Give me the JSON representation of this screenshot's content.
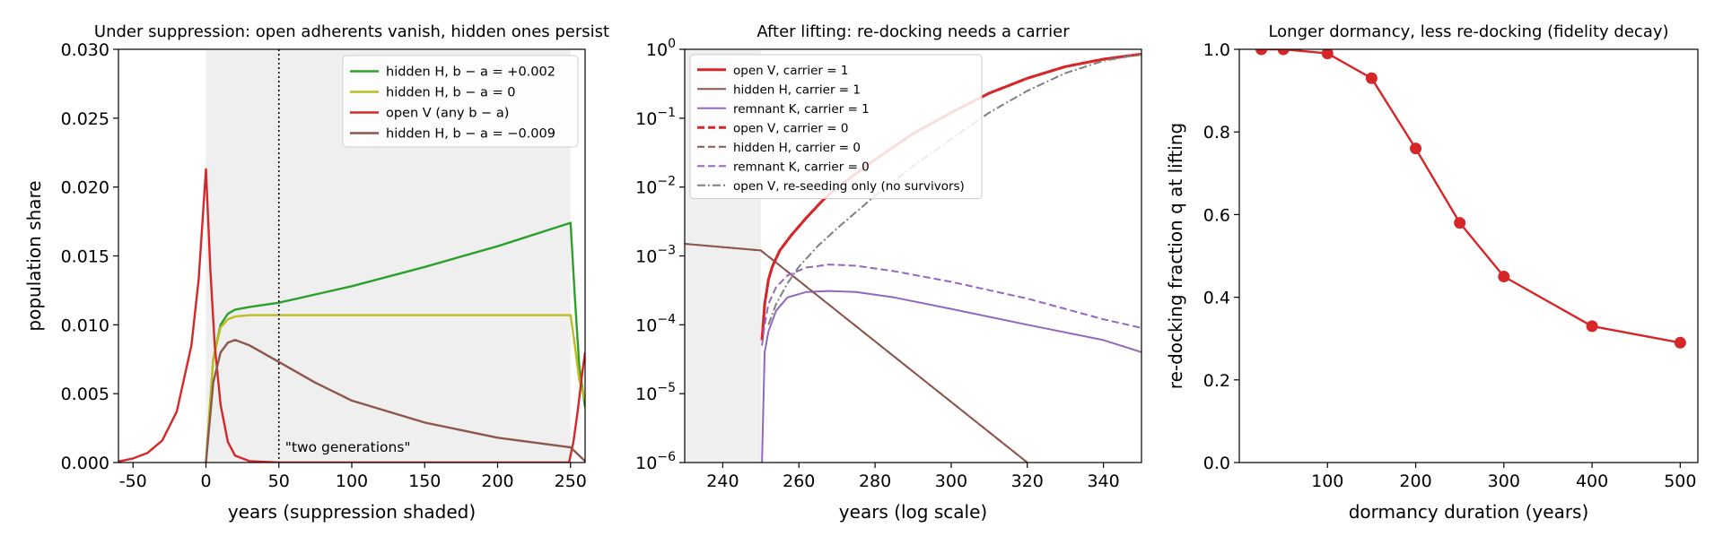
{
  "chart_data": [
    {
      "type": "line",
      "title": "Under suppression: open adherents vanish, hidden ones persist",
      "xlabel": "years (suppression shaded)",
      "ylabel": "population share",
      "xlim": [
        -60,
        260
      ],
      "ylim": [
        0,
        0.03
      ],
      "xticks": [
        -50,
        0,
        50,
        100,
        150,
        200,
        250
      ],
      "yticks": [
        0.0,
        0.005,
        0.01,
        0.015,
        0.02,
        0.025,
        0.03
      ],
      "ytick_labels": [
        "0.000",
        "0.005",
        "0.010",
        "0.015",
        "0.020",
        "0.025",
        "0.030"
      ],
      "shaded_region": [
        0,
        250
      ],
      "vline": 50,
      "annotation": "\"two generations\"",
      "legend_position": "upper right",
      "series": [
        {
          "name": "hidden H, b − a = +0.002",
          "color": "#2ca02c",
          "style": "solid",
          "x": [
            0,
            5,
            10,
            15,
            20,
            30,
            50,
            100,
            150,
            200,
            250,
            253,
            256,
            260
          ],
          "y": [
            0,
            0.0075,
            0.01,
            0.0108,
            0.0111,
            0.0113,
            0.0116,
            0.0128,
            0.0142,
            0.0157,
            0.0174,
            0.012,
            0.007,
            0.004
          ]
        },
        {
          "name": "hidden H, b − a = 0",
          "color": "#bcbd22",
          "style": "solid",
          "x": [
            0,
            5,
            10,
            15,
            20,
            30,
            50,
            100,
            150,
            200,
            250,
            253,
            256,
            260
          ],
          "y": [
            0,
            0.0075,
            0.0098,
            0.0104,
            0.0106,
            0.0107,
            0.0107,
            0.0107,
            0.0107,
            0.0107,
            0.0107,
            0.0085,
            0.006,
            0.0045
          ]
        },
        {
          "name": "open V (any b − a)",
          "color": "#d62728",
          "style": "solid",
          "x": [
            -60,
            -50,
            -40,
            -30,
            -20,
            -10,
            -5,
            0,
            3,
            6,
            10,
            15,
            20,
            30,
            50,
            100,
            200,
            249,
            252,
            255,
            258,
            260
          ],
          "y": [
            7e-05,
            0.0003,
            0.0007,
            0.0016,
            0.0037,
            0.0085,
            0.0133,
            0.0213,
            0.014,
            0.0085,
            0.0042,
            0.0015,
            0.0005,
            0.0001,
            0,
            0,
            0,
            0,
            0.0015,
            0.0038,
            0.0065,
            0.008
          ]
        },
        {
          "name": "hidden H, b − a = −0.009",
          "color": "#8c564b",
          "style": "solid",
          "x": [
            0,
            5,
            10,
            15,
            20,
            30,
            40,
            50,
            75,
            100,
            150,
            200,
            250,
            254,
            260
          ],
          "y": [
            0,
            0.0058,
            0.008,
            0.0087,
            0.0089,
            0.0085,
            0.0079,
            0.0073,
            0.0058,
            0.0045,
            0.0029,
            0.0018,
            0.0011,
            0.0007,
            0.0001
          ]
        }
      ]
    },
    {
      "type": "line",
      "title": "After lifting: re-docking needs a carrier",
      "xlabel": "years (log scale)",
      "ylabel": "",
      "yscale": "log",
      "xlim": [
        230,
        350
      ],
      "ylim": [
        1e-06,
        1
      ],
      "xticks": [
        240,
        260,
        280,
        300,
        320,
        340
      ],
      "yticks": [
        0,
        -1,
        -2,
        -3,
        -4,
        -5,
        -6
      ],
      "shaded_region": [
        230,
        250
      ],
      "legend_position": "upper left",
      "series": [
        {
          "name": "open V, carrier = 1",
          "color": "#d62728",
          "style": "solid",
          "width": 3,
          "x": [
            250.3,
            251,
            252,
            253,
            255,
            258,
            262,
            266,
            270,
            280,
            290,
            300,
            310,
            320,
            330,
            340,
            350
          ],
          "y": [
            6e-05,
            0.0002,
            0.00045,
            0.0007,
            0.0012,
            0.002,
            0.0036,
            0.0062,
            0.0098,
            0.025,
            0.06,
            0.12,
            0.23,
            0.38,
            0.56,
            0.72,
            0.85
          ]
        },
        {
          "name": "hidden H, carrier = 1",
          "color": "#8c564b",
          "style": "solid",
          "width": 2,
          "x": [
            230,
            250,
            320
          ],
          "y": [
            0.0015,
            0.0012,
            1e-06
          ]
        },
        {
          "name": "remnant K, carrier = 1",
          "color": "#9467bd",
          "style": "solid",
          "width": 2,
          "x": [
            250.3,
            251,
            252,
            254,
            257,
            262,
            268,
            275,
            285,
            300,
            320,
            340,
            350
          ],
          "y": [
            1e-06,
            4e-05,
            8e-05,
            0.00016,
            0.00025,
            0.0003,
            0.00031,
            0.0003,
            0.00025,
            0.00017,
            0.0001,
            6e-05,
            4e-05
          ]
        },
        {
          "name": "open V, carrier = 0",
          "color": "#d62728",
          "style": "dashed",
          "width": 3,
          "x": [
            250.3,
            251,
            252,
            253,
            255,
            258,
            262,
            266,
            270,
            280,
            290,
            300,
            310,
            320,
            330,
            340,
            350
          ],
          "y": [
            6e-05,
            0.0002,
            0.00045,
            0.0007,
            0.0012,
            0.002,
            0.0036,
            0.0062,
            0.0098,
            0.025,
            0.06,
            0.12,
            0.23,
            0.38,
            0.56,
            0.72,
            0.85
          ]
        },
        {
          "name": "hidden H, carrier = 0",
          "color": "#8c564b",
          "style": "dashed",
          "width": 2,
          "x": [
            230,
            250,
            320
          ],
          "y": [
            0.0015,
            0.0012,
            1e-06
          ]
        },
        {
          "name": "remnant K, carrier = 0",
          "color": "#9467bd",
          "style": "dashed",
          "width": 2,
          "x": [
            250.3,
            251,
            252,
            254,
            257,
            262,
            268,
            275,
            285,
            300,
            320,
            340,
            350
          ],
          "y": [
            5e-05,
            0.0001,
            0.0002,
            0.00035,
            0.00052,
            0.00068,
            0.00075,
            0.00072,
            0.0006,
            0.00042,
            0.00024,
            0.00012,
            9e-05
          ]
        },
        {
          "name": "open V, re-seeding only (no survivors)",
          "color": "#7f7f7f",
          "style": "dashdot",
          "width": 2,
          "x": [
            252,
            254,
            257,
            260,
            265,
            270,
            280,
            290,
            300,
            310,
            320,
            330,
            340,
            350
          ],
          "y": [
            0.0001,
            0.0002,
            0.0004,
            0.0007,
            0.0014,
            0.0025,
            0.0075,
            0.02,
            0.05,
            0.12,
            0.25,
            0.45,
            0.68,
            0.85
          ]
        }
      ]
    },
    {
      "type": "line",
      "title": "Longer dormancy, less re-docking (fidelity decay)",
      "xlabel": "dormancy duration (years)",
      "ylabel": "re-docking fraction q at lifting",
      "xlim": [
        0,
        520
      ],
      "ylim": [
        0,
        1
      ],
      "xticks": [
        100,
        200,
        300,
        400,
        500
      ],
      "yticks": [
        0.0,
        0.2,
        0.4,
        0.6,
        0.8,
        1.0
      ],
      "series": [
        {
          "name": "",
          "color": "#d62728",
          "style": "solid",
          "marker": "o",
          "x": [
            25,
            50,
            100,
            150,
            200,
            250,
            300,
            400,
            500
          ],
          "y": [
            1.0,
            1.0,
            0.99,
            0.93,
            0.76,
            0.58,
            0.45,
            0.33,
            0.29
          ]
        }
      ]
    }
  ]
}
